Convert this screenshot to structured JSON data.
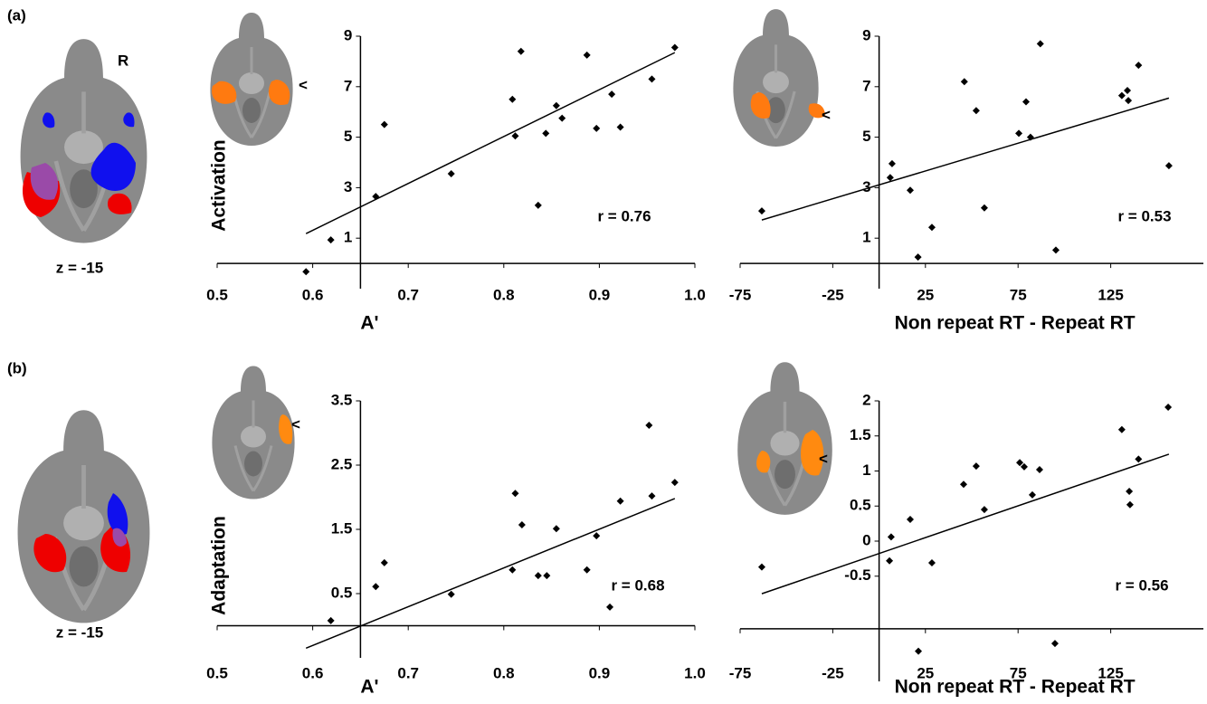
{
  "figure": {
    "panels": [
      {
        "label": "(a)",
        "side": "R",
        "slice": "z = -15"
      },
      {
        "label": "(b)",
        "slice": "z = -15"
      }
    ]
  },
  "chart_data": [
    {
      "type": "scatter",
      "y_label": "Activation",
      "x_label": "A'",
      "annotation": "r = 0.76",
      "color": "#000000",
      "x": [
        0.593,
        0.619,
        0.666,
        0.675,
        0.745,
        0.809,
        0.812,
        0.818,
        0.836,
        0.844,
        0.855,
        0.861,
        0.887,
        0.897,
        0.913,
        0.922,
        0.955,
        0.979
      ],
      "y": [
        -0.33,
        0.93,
        2.65,
        5.5,
        3.55,
        6.5,
        5.05,
        8.4,
        2.3,
        5.15,
        6.25,
        5.75,
        8.25,
        5.35,
        6.7,
        5.4,
        7.3,
        8.55
      ],
      "fit_line": {
        "x": [
          0.593,
          0.979
        ],
        "y": [
          1.18,
          8.35
        ]
      },
      "xlim": [
        0.5,
        1.0
      ],
      "ylim": [
        -1,
        9
      ],
      "x_axis_at": 0,
      "y_axis_at": 0.65,
      "xticks": [
        0.5,
        0.6,
        0.7,
        0.8,
        0.9,
        {
          "value": 1.0,
          "label": "1.0"
        }
      ],
      "yticks": [
        1,
        3,
        5,
        7,
        9
      ]
    },
    {
      "type": "scatter",
      "x_label": "Non repeat RT - Repeat RT",
      "annotation": "r = 0.53",
      "color": "#000000",
      "x": [
        -63.3,
        6,
        7,
        16.8,
        21,
        28.5,
        46,
        52.4,
        56.8,
        75.4,
        79.3,
        81.7,
        87,
        95.4,
        131,
        134,
        134.5,
        140,
        156.4
      ],
      "y": [
        2.08,
        3.4,
        3.95,
        2.9,
        0.25,
        1.43,
        7.2,
        6.05,
        2.2,
        5.15,
        6.4,
        5.0,
        8.7,
        0.53,
        6.65,
        6.85,
        6.45,
        7.85,
        3.87
      ],
      "fit_line": {
        "x": [
          -63.3,
          156.4
        ],
        "y": [
          1.72,
          6.55
        ]
      },
      "xlim": [
        -75,
        175
      ],
      "ylim": [
        -1,
        9
      ],
      "x_axis_at": 0,
      "y_axis_at": 0,
      "xticks": [
        -75,
        -25,
        25,
        75,
        125
      ],
      "yticks": [
        1,
        3,
        5,
        7,
        9
      ]
    },
    {
      "type": "scatter",
      "y_label": "Adaptation",
      "x_label": "A'",
      "annotation": "r = 0.68",
      "color": "#000000",
      "x": [
        0.619,
        0.666,
        0.675,
        0.745,
        0.809,
        0.812,
        0.819,
        0.836,
        0.845,
        0.855,
        0.887,
        0.897,
        0.911,
        0.922,
        0.952,
        0.955,
        0.979
      ],
      "y": [
        0.08,
        0.61,
        0.98,
        0.49,
        0.87,
        2.06,
        1.57,
        0.78,
        0.78,
        1.51,
        0.87,
        1.4,
        0.29,
        1.94,
        3.12,
        2.02,
        2.23
      ],
      "fit_line": {
        "x": [
          0.593,
          0.979
        ],
        "y": [
          -0.35,
          1.98
        ]
      },
      "xlim": [
        0.5,
        1.0
      ],
      "ylim": [
        -0.5,
        3.5
      ],
      "x_axis_at": 0,
      "y_axis_at": 0.65,
      "xticks": [
        0.5,
        0.6,
        0.7,
        0.8,
        0.9,
        {
          "value": 1.0,
          "label": "1.0"
        }
      ],
      "yticks": [
        0.5,
        1.5,
        2.5,
        3.5
      ]
    },
    {
      "type": "scatter",
      "x_label": "Non repeat RT - Repeat RT",
      "annotation": "r = 0.56",
      "color": "#000000",
      "x": [
        -63.3,
        5.6,
        6.5,
        16.8,
        21.2,
        28.5,
        45.6,
        52.4,
        56.8,
        75.9,
        78.3,
        82.7,
        86.6,
        94.9,
        131,
        135,
        135.4,
        140,
        156
      ],
      "y": [
        -0.37,
        -0.28,
        0.06,
        0.31,
        -1.57,
        -0.31,
        0.81,
        1.07,
        0.45,
        1.12,
        1.06,
        0.66,
        1.02,
        -1.46,
        1.59,
        0.71,
        0.52,
        1.17,
        1.91
      ],
      "fit_line": {
        "x": [
          -63.3,
          156.4
        ],
        "y": [
          -0.75,
          1.24
        ]
      },
      "xlim": [
        -75,
        175
      ],
      "ylim": [
        -2,
        2
      ],
      "x_axis_at": -1.25,
      "y_axis_at": 0,
      "xticks": [
        -75,
        -25,
        25,
        75,
        125
      ],
      "yticks": [
        -0.5,
        0,
        0.5,
        1,
        1.5,
        2
      ]
    }
  ]
}
